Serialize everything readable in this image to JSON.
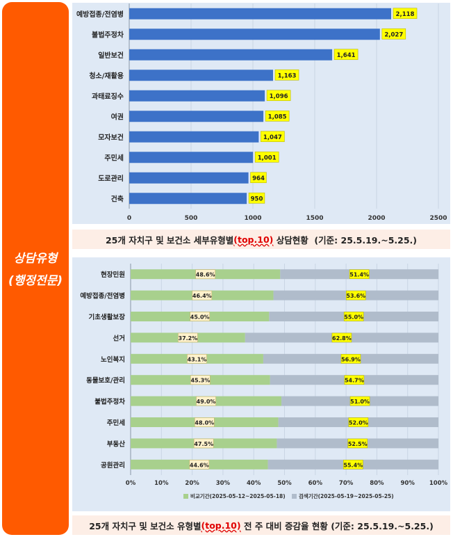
{
  "side_label": {
    "line1": "상담유형",
    "line2": "(행정전문)"
  },
  "chart_data": [
    {
      "type": "bar",
      "orientation": "horizontal",
      "categories": [
        "예방접종/전염병",
        "불법주정차",
        "일반보건",
        "청소/재활용",
        "과태료징수",
        "여권",
        "모자보건",
        "주민세",
        "도로관리",
        "건축"
      ],
      "values": [
        2118,
        2027,
        1641,
        1163,
        1096,
        1085,
        1047,
        1001,
        964,
        950
      ],
      "value_labels": [
        "2,118",
        "2,027",
        "1,641",
        "1,163",
        "1,096",
        "1,085",
        "1,047",
        "1,001",
        "964",
        "950"
      ],
      "xlim": [
        0,
        2500
      ],
      "xticks": [
        0,
        500,
        1000,
        1500,
        2000,
        2500
      ],
      "grid": true,
      "colors": {
        "bar": "#3d72c8",
        "label_bg": "#ffff00"
      },
      "caption": {
        "before": "25개 자치구 및 보건소 세부유형별",
        "highlight": "(top.10)",
        "after": " 상담현황  (기준: 25.5.19.~5.25.)"
      }
    },
    {
      "type": "bar",
      "orientation": "horizontal",
      "stacked": "percent",
      "categories": [
        "현장민원",
        "예방접종/전염병",
        "기초생활보장",
        "선거",
        "노인복지",
        "동물보호/관리",
        "불법주정차",
        "주민세",
        "부동산",
        "공원관리"
      ],
      "series": [
        {
          "name": "비교기간(2025-05-12~2025-05-18)",
          "values": [
            48.6,
            46.4,
            45.0,
            37.2,
            43.1,
            45.3,
            49.0,
            48.0,
            47.5,
            44.6
          ],
          "labels": [
            "48.6%",
            "46.4%",
            "45.0%",
            "37.2%",
            "43.1%",
            "45.3%",
            "49.0%",
            "48.0%",
            "47.5%",
            "44.6%"
          ]
        },
        {
          "name": "검색기간(2025-05-19~2025-05-25)",
          "values": [
            51.4,
            53.6,
            55.0,
            62.8,
            56.9,
            54.7,
            51.0,
            52.0,
            52.5,
            55.4
          ],
          "labels": [
            "51.4%",
            "53.6%",
            "55.0%",
            "62.8%",
            "56.9%",
            "54.7%",
            "51.0%",
            "52.0%",
            "52.5%",
            "55.4%"
          ]
        }
      ],
      "xlim": [
        0,
        100
      ],
      "xticks": [
        "0%",
        "10%",
        "20%",
        "30%",
        "40%",
        "50%",
        "60%",
        "70%",
        "80%",
        "90%",
        "100%"
      ],
      "grid": true,
      "legend_position": "bottom",
      "colors": {
        "series1": "#a8d08d",
        "series2": "#b0bccb",
        "series1_label_bg": "#fff2cc",
        "series2_label_bg": "#ffff00"
      },
      "caption": {
        "before": "25개 자치구 및 보건소 유형별",
        "highlight": "(top.10)",
        "after": " 전 주 대비 증감율 현황 (기준: 25.5.19.~5.25.)"
      }
    }
  ]
}
